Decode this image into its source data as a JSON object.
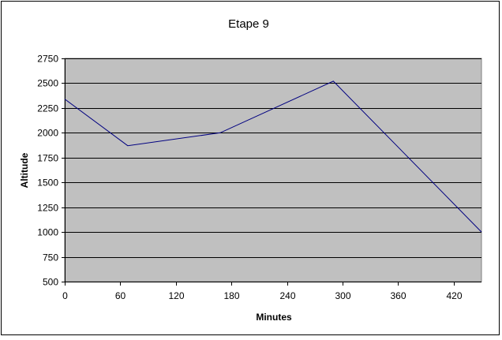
{
  "chart_data": {
    "type": "line",
    "title": "Etape 9",
    "xlabel": "Minutes",
    "ylabel": "Altitude",
    "xlim": [
      0,
      450
    ],
    "ylim": [
      500,
      2750
    ],
    "x_ticks": [
      0,
      60,
      120,
      180,
      240,
      300,
      360,
      420
    ],
    "y_ticks": [
      500,
      750,
      1000,
      1250,
      1500,
      1750,
      2000,
      2250,
      2500,
      2750
    ],
    "grid": "horizontal",
    "legend": "none",
    "series": [
      {
        "x": [
          0,
          68,
          168,
          290,
          450
        ],
        "y": [
          2340,
          1870,
          2000,
          2520,
          1000
        ]
      }
    ],
    "colors": {
      "plot_background": "#c0c0c0",
      "line": "#000080",
      "gridline": "#000000"
    }
  }
}
